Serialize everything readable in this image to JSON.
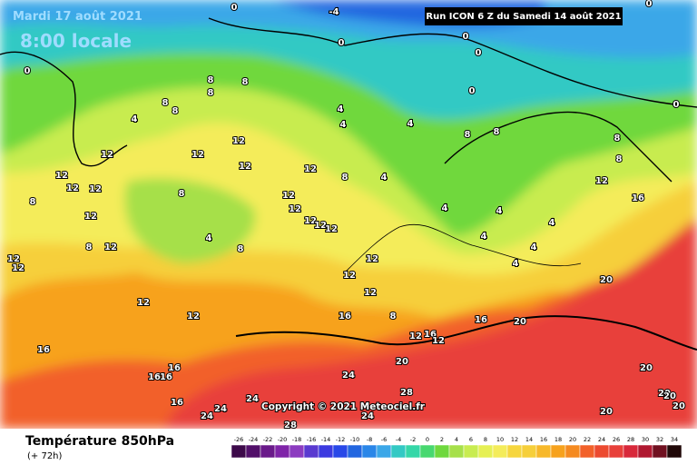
{
  "header": {
    "date": "Mardi 17 août 2021",
    "time": "8:00 locale",
    "run": "Run ICON 6 Z du Samedi 14 août 2021"
  },
  "copyright": "Copyright © 2021 Meteociel.fr",
  "footer": {
    "title": "Température 850hPa",
    "range": "(+ 72h)"
  },
  "scale": {
    "labels": [
      -26,
      -24,
      -22,
      -20,
      -18,
      -16,
      -14,
      -12,
      -10,
      -8,
      -6,
      -4,
      -2,
      0,
      2,
      4,
      6,
      8,
      10,
      12,
      14,
      16,
      18,
      20,
      22,
      24,
      26,
      28,
      30,
      32,
      34
    ],
    "colors": [
      "#3d0a4a",
      "#52106a",
      "#6a1a8a",
      "#7f24a8",
      "#8c3cc0",
      "#5a3ad0",
      "#3c3ae0",
      "#2848e8",
      "#2266e0",
      "#2a86e8",
      "#3ba7e8",
      "#33c9c4",
      "#35d7a8",
      "#48d870",
      "#6fd83e",
      "#a6e04a",
      "#c8ec50",
      "#e6f054",
      "#f4ec5a",
      "#f6d63e",
      "#f6cf3a",
      "#f7b82a",
      "#f7a21d",
      "#f58a20",
      "#f2612a",
      "#ec4a30",
      "#e8403a",
      "#d8283a",
      "#b01830",
      "#701020",
      "#200808"
    ]
  },
  "isotherms": [
    0,
    -4,
    0,
    0,
    0,
    0,
    0,
    0,
    0,
    8,
    8,
    8,
    8,
    8,
    4,
    4,
    4,
    4,
    8,
    8,
    12,
    12,
    12,
    12,
    12,
    12,
    12,
    12,
    8,
    4,
    8,
    8,
    12,
    16,
    8,
    12,
    12,
    12,
    12,
    12,
    4,
    4,
    4,
    4,
    8,
    8,
    12,
    12,
    12,
    8,
    12,
    12,
    12,
    12,
    4,
    4,
    4,
    20,
    12,
    12,
    16,
    8,
    16,
    20,
    12,
    16,
    12,
    16,
    16,
    16,
    16,
    16,
    24,
    24,
    24,
    24,
    20,
    28,
    24,
    28,
    20,
    20,
    20,
    20,
    20
  ]
}
